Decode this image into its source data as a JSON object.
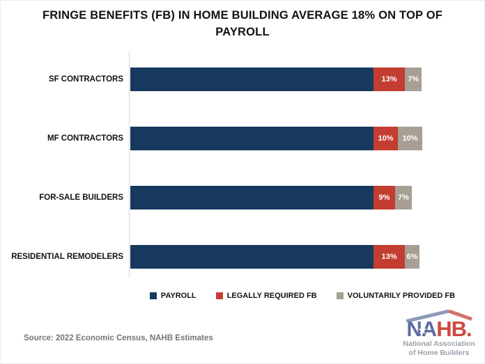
{
  "chart_data": {
    "type": "bar",
    "orientation": "horizontal",
    "stacked": true,
    "title": "FRINGE BENEFITS (FB) IN HOME BUILDING AVERAGE 18% ON TOP OF PAYROLL",
    "categories": [
      "SF CONTRACTORS",
      "MF CONTRACTORS",
      "FOR-SALE BUILDERS",
      "RESIDENTIAL REMODELERS"
    ],
    "series": [
      {
        "name": "PAYROLL",
        "color": "#17395e",
        "values": [
          100,
          100,
          100,
          100
        ],
        "labels": [
          "",
          "",
          "",
          ""
        ]
      },
      {
        "name": "LEGALLY REQUIRED FB",
        "color": "#c33d30",
        "values": [
          13,
          10,
          9,
          13
        ],
        "labels": [
          "13%",
          "10%",
          "9%",
          "13%"
        ]
      },
      {
        "name": "VOLUNTARILY PROVIDED FB",
        "color": "#a79f94",
        "values": [
          7,
          10,
          7,
          6
        ],
        "labels": [
          "7%",
          "10%",
          "7%",
          "6%"
        ]
      }
    ],
    "xlim": [
      0,
      135
    ],
    "grid": false,
    "legend_position": "bottom"
  },
  "source": {
    "text": "Source: 2022 Economic Census, NAHB Estimates"
  },
  "logo": {
    "na": "NA",
    "hb": "HB.",
    "star": "★",
    "tagline1": "National Association",
    "tagline2": "of Home Builders",
    "colors": {
      "letters_blue": "#5d6ca3",
      "letters_red": "#cd4a41",
      "roof_blue": "#8d99b7",
      "roof_red": "#d3726c",
      "tagline_gray": "#9ba1ab"
    }
  }
}
